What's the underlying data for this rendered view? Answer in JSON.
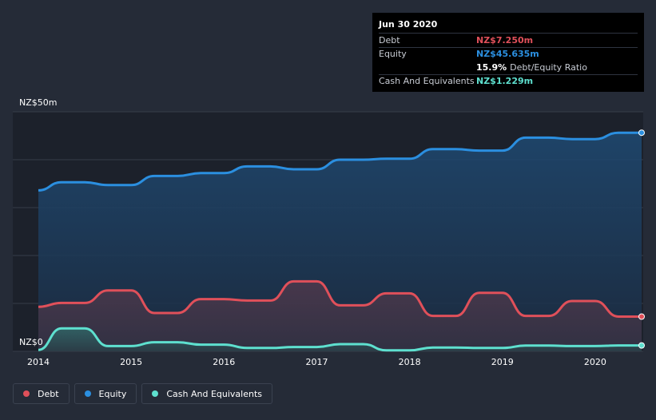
{
  "chart_data": {
    "type": "area",
    "title": "",
    "y_top_label": "NZ$50m",
    "y_bottom_label": "NZ$0",
    "ylim": [
      0,
      50
    ],
    "xlim": [
      2014.0,
      2020.5
    ],
    "x_ticks": [
      "2014",
      "2015",
      "2016",
      "2017",
      "2018",
      "2019",
      "2020"
    ],
    "series": [
      {
        "name": "Equity",
        "color": "#2b8fe0",
        "x": [
          2014.0,
          2014.25,
          2014.5,
          2014.75,
          2015.0,
          2015.25,
          2015.5,
          2015.75,
          2016.0,
          2016.25,
          2016.5,
          2016.75,
          2017.0,
          2017.25,
          2017.5,
          2017.75,
          2018.0,
          2018.25,
          2018.5,
          2018.75,
          2019.0,
          2019.25,
          2019.5,
          2019.75,
          2020.0,
          2020.25,
          2020.5
        ],
        "values": [
          33.6,
          35.3,
          35.3,
          34.7,
          34.7,
          36.6,
          36.6,
          37.2,
          37.2,
          38.6,
          38.6,
          38.0,
          38.0,
          40.0,
          40.0,
          40.2,
          40.2,
          42.2,
          42.2,
          41.9,
          41.9,
          44.6,
          44.6,
          44.3,
          44.3,
          45.635,
          45.635
        ]
      },
      {
        "name": "Debt",
        "color": "#e0505a",
        "x": [
          2014.0,
          2014.25,
          2014.5,
          2014.75,
          2015.0,
          2015.25,
          2015.5,
          2015.75,
          2016.0,
          2016.25,
          2016.5,
          2016.75,
          2017.0,
          2017.25,
          2017.5,
          2017.75,
          2018.0,
          2018.25,
          2018.5,
          2018.75,
          2019.0,
          2019.25,
          2019.5,
          2019.75,
          2020.0,
          2020.25,
          2020.5
        ],
        "values": [
          9.3,
          10.1,
          10.1,
          12.7,
          12.7,
          8.0,
          8.0,
          10.9,
          10.9,
          10.6,
          10.6,
          14.6,
          14.6,
          9.6,
          9.6,
          12.1,
          12.1,
          7.4,
          7.4,
          12.2,
          12.2,
          7.4,
          7.4,
          10.5,
          10.5,
          7.25,
          7.25
        ]
      },
      {
        "name": "Cash And Equivalents",
        "color": "#5ee0cf",
        "x": [
          2014.0,
          2014.25,
          2014.5,
          2014.75,
          2015.0,
          2015.25,
          2015.5,
          2015.75,
          2016.0,
          2016.25,
          2016.5,
          2016.75,
          2017.0,
          2017.25,
          2017.5,
          2017.75,
          2018.0,
          2018.25,
          2018.5,
          2018.75,
          2019.0,
          2019.25,
          2019.5,
          2019.75,
          2020.0,
          2020.25,
          2020.5
        ],
        "values": [
          0.3,
          4.8,
          4.8,
          1.1,
          1.1,
          1.9,
          1.9,
          1.4,
          1.4,
          0.7,
          0.7,
          0.9,
          0.9,
          1.5,
          1.5,
          0.2,
          0.2,
          0.8,
          0.8,
          0.7,
          0.7,
          1.2,
          1.2,
          1.1,
          1.1,
          1.229,
          1.229
        ]
      }
    ],
    "legend": [
      "Debt",
      "Equity",
      "Cash And Equivalents"
    ],
    "legend_position": "bottom-left"
  },
  "tooltip": {
    "date": "Jun 30 2020",
    "debt_label": "Debt",
    "debt_value": "NZ$7.250m",
    "equity_label": "Equity",
    "equity_value": "NZ$45.635m",
    "ratio_pct": "15.9%",
    "ratio_label": "Debt/Equity Ratio",
    "cash_label": "Cash And Equivalents",
    "cash_value": "NZ$1.229m"
  },
  "colors": {
    "debt": "#e0505a",
    "equity": "#2b8fe0",
    "cash": "#5ee0cf"
  }
}
